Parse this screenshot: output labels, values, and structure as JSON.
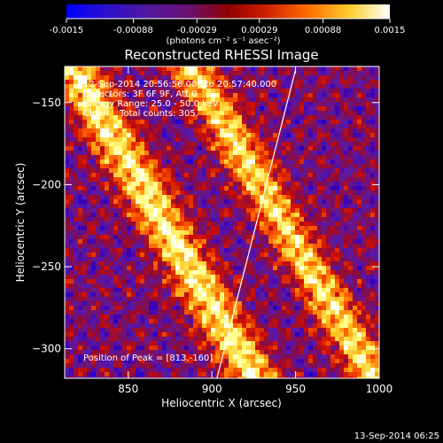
{
  "colorbar": {
    "tick_labels": [
      "-0.0015",
      "-0.00088",
      "-0.00029",
      "0.00029",
      "0.00088",
      "0.0015"
    ],
    "tick_values": [
      -0.0015,
      -0.00088,
      -0.00029,
      0.00029,
      0.00088,
      0.0015
    ],
    "range": [
      -0.0015,
      0.0015
    ],
    "units_label": "(photons cm⁻² s⁻¹ asec⁻²)"
  },
  "chart_data": {
    "type": "heatmap",
    "title": "Reconstructed RHESSI Image",
    "xlabel": "Heliocentric X (arcsec)",
    "ylabel": "Heliocentric Y (arcsec)",
    "xlim": [
      812,
      1000
    ],
    "ylim": [
      -318,
      -128
    ],
    "xticks": [
      850,
      900,
      950,
      1000
    ],
    "yticks": [
      -150,
      -200,
      -250,
      -300
    ],
    "xtick_labels": [
      "850",
      "900",
      "950",
      "1000"
    ],
    "ytick_labels": [
      "−150",
      "−200",
      "−250",
      "−300"
    ],
    "limb_line": [
      [
        900,
        -330
      ],
      [
        950,
        -130
      ]
    ],
    "peak_position": [
      813,
      -160
    ],
    "info_lines": [
      "12-Sep-2014 20:56:56.000 to 20:57:40.000",
      "Detectors: 3F 6F 9F, Att 0",
      "Energy Range: 25.0 - 50.0 keV",
      "Clean    Total counts: 305."
    ],
    "peak_label": "Position of Peak = [813,-160]",
    "colors": {
      "background": "#000000",
      "text": "#ffffff",
      "colormap": [
        "#0000ff",
        "#3d00b0",
        "#5a1aa8",
        "#8a0a40",
        "#d01000",
        "#ff6000",
        "#ffc020",
        "#ffff80",
        "#ffffff"
      ]
    }
  },
  "footer": {
    "timestamp": "13-Sep-2014 06:25"
  }
}
